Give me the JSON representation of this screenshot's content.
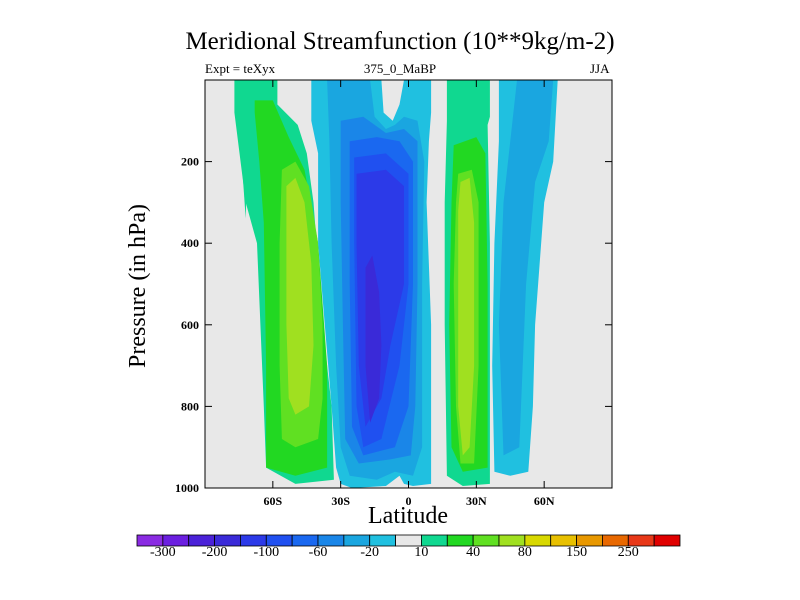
{
  "title": "Meridional Streamfunction (10**9kg/m-2)",
  "subtitle_left": "Expt = teXyx",
  "subtitle_center": "375_0_MaBP",
  "subtitle_right": "JJA",
  "chart_data": {
    "type": "contour",
    "xlabel": "Latitude",
    "ylabel": "Pressure (in hPa)",
    "xlim": [
      -90,
      90
    ],
    "ylim": [
      1000,
      0
    ],
    "x_ticks": [
      {
        "value": -60,
        "label": "60S"
      },
      {
        "value": -30,
        "label": "30S"
      },
      {
        "value": 0,
        "label": "0"
      },
      {
        "value": 30,
        "label": "30N"
      },
      {
        "value": 60,
        "label": "60N"
      }
    ],
    "y_ticks": [
      {
        "value": 200,
        "label": "200"
      },
      {
        "value": 400,
        "label": "400"
      },
      {
        "value": 600,
        "label": "600"
      },
      {
        "value": 800,
        "label": "800"
      },
      {
        "value": 1000,
        "label": "1000"
      }
    ],
    "background_color": "#e8e8e8",
    "contour_levels": [
      -300,
      -250,
      -200,
      -150,
      -100,
      -80,
      -60,
      -40,
      -20,
      -10,
      10,
      20,
      40,
      60,
      80,
      100,
      150,
      200,
      250,
      300
    ],
    "colorbar": {
      "colors": [
        "#8a2be2",
        "#6b1fe0",
        "#4b22d8",
        "#3a2ad8",
        "#2c3ae8",
        "#2050f0",
        "#1a68f0",
        "#1a86e8",
        "#1aa6e0",
        "#20c0e0",
        "#e8e8e8",
        "#10d890",
        "#22d822",
        "#60e022",
        "#a0e020",
        "#d8d800",
        "#e8c000",
        "#e89800",
        "#e86800",
        "#e83818",
        "#e00000"
      ],
      "labels": [
        {
          "index": 1,
          "text": "-300"
        },
        {
          "index": 3,
          "text": "-200"
        },
        {
          "index": 5,
          "text": "-100"
        },
        {
          "index": 7,
          "text": "-60"
        },
        {
          "index": 9,
          "text": "-20"
        },
        {
          "index": 11,
          "text": "10"
        },
        {
          "index": 13,
          "text": "40"
        },
        {
          "index": 15,
          "text": "80"
        },
        {
          "index": 17,
          "text": "150"
        },
        {
          "index": 19,
          "text": "250"
        }
      ]
    },
    "regions": [
      {
        "name": "sh-polar-cell-outer",
        "level": 10,
        "color": "#10d890",
        "points": [
          [
            -77,
            0
          ],
          [
            -58,
            0
          ],
          [
            -58,
            60
          ],
          [
            -49,
            110
          ],
          [
            -45,
            180
          ],
          [
            -42,
            300
          ],
          [
            -38,
            600
          ],
          [
            -34,
            800
          ],
          [
            -33,
            980
          ],
          [
            -50,
            990
          ],
          [
            -63,
            950
          ],
          [
            -64,
            800
          ],
          [
            -67,
            400
          ],
          [
            -72,
            300
          ],
          [
            -77,
            80
          ]
        ]
      },
      {
        "name": "sh-thin-spike",
        "level": 10,
        "color": "#10d890",
        "points": [
          [
            -73,
            120
          ],
          [
            -71,
            150
          ],
          [
            -72,
            340
          ],
          [
            -74,
            180
          ]
        ]
      },
      {
        "name": "sh-polar-cell-20",
        "level": 20,
        "color": "#22d822",
        "points": [
          [
            -68,
            50
          ],
          [
            -60,
            50
          ],
          [
            -53,
            140
          ],
          [
            -46,
            220
          ],
          [
            -40,
            400
          ],
          [
            -36,
            700
          ],
          [
            -36,
            950
          ],
          [
            -50,
            970
          ],
          [
            -63,
            950
          ],
          [
            -63,
            700
          ],
          [
            -64,
            350
          ],
          [
            -66,
            200
          ],
          [
            -68,
            80
          ]
        ]
      },
      {
        "name": "sh-polar-cell-40",
        "level": 40,
        "color": "#60e022",
        "points": [
          [
            -56,
            220
          ],
          [
            -50,
            200
          ],
          [
            -44,
            260
          ],
          [
            -40,
            400
          ],
          [
            -38,
            600
          ],
          [
            -38,
            780
          ],
          [
            -40,
            880
          ],
          [
            -50,
            900
          ],
          [
            -56,
            880
          ],
          [
            -57,
            700
          ],
          [
            -57,
            400
          ]
        ]
      },
      {
        "name": "sh-polar-cell-80",
        "level": 80,
        "color": "#a0e020",
        "points": [
          [
            -54,
            260
          ],
          [
            -50,
            240
          ],
          [
            -46,
            300
          ],
          [
            -43,
            450
          ],
          [
            -42,
            650
          ],
          [
            -44,
            800
          ],
          [
            -50,
            820
          ],
          [
            -53,
            780
          ],
          [
            -54,
            600
          ],
          [
            -54,
            400
          ]
        ]
      },
      {
        "name": "hadley-10",
        "level": -10,
        "color": "#20c0e0",
        "points": [
          [
            -43,
            0
          ],
          [
            -12,
            0
          ],
          [
            -11,
            80
          ],
          [
            -7,
            100
          ],
          [
            -4,
            60
          ],
          [
            -2,
            0
          ],
          [
            10,
            0
          ],
          [
            10,
            80
          ],
          [
            9,
            150
          ],
          [
            8,
            300
          ],
          [
            10,
            600
          ],
          [
            10,
            990
          ],
          [
            2,
            995
          ],
          [
            -2,
            990
          ],
          [
            -4,
            970
          ],
          [
            -10,
            995
          ],
          [
            -25,
            1000
          ],
          [
            -30,
            990
          ],
          [
            -32,
            950
          ],
          [
            -34,
            800
          ],
          [
            -37,
            600
          ],
          [
            -40,
            400
          ],
          [
            -40,
            180
          ],
          [
            -43,
            100
          ]
        ]
      },
      {
        "name": "hadley-20",
        "level": -20,
        "color": "#1aa6e0",
        "points": [
          [
            -36,
            0
          ],
          [
            -17,
            0
          ],
          [
            -15,
            90
          ],
          [
            -10,
            120
          ],
          [
            -6,
            110
          ],
          [
            -2,
            90
          ],
          [
            4,
            100
          ],
          [
            7,
            200
          ],
          [
            6,
            500
          ],
          [
            6,
            900
          ],
          [
            2,
            970
          ],
          [
            -6,
            960
          ],
          [
            -14,
            980
          ],
          [
            -26,
            970
          ],
          [
            -30,
            900
          ],
          [
            -32,
            700
          ],
          [
            -34,
            400
          ],
          [
            -35,
            150
          ]
        ]
      },
      {
        "name": "hadley-40",
        "level": -40,
        "color": "#1a86e8",
        "points": [
          [
            -30,
            100
          ],
          [
            -20,
            90
          ],
          [
            -10,
            130
          ],
          [
            -2,
            120
          ],
          [
            4,
            150
          ],
          [
            4,
            500
          ],
          [
            3,
            800
          ],
          [
            1,
            920
          ],
          [
            -8,
            930
          ],
          [
            -22,
            940
          ],
          [
            -28,
            880
          ],
          [
            -29,
            600
          ],
          [
            -30,
            300
          ]
        ]
      },
      {
        "name": "hadley-60",
        "level": -60,
        "color": "#1a68f0",
        "points": [
          [
            -26,
            150
          ],
          [
            -14,
            140
          ],
          [
            -4,
            150
          ],
          [
            2,
            200
          ],
          [
            2,
            500
          ],
          [
            0,
            800
          ],
          [
            -6,
            900
          ],
          [
            -20,
            920
          ],
          [
            -25,
            850
          ],
          [
            -26,
            500
          ]
        ]
      },
      {
        "name": "hadley-80",
        "level": -80,
        "color": "#2050f0",
        "points": [
          [
            -24,
            190
          ],
          [
            -10,
            180
          ],
          [
            0,
            230
          ],
          [
            0,
            500
          ],
          [
            -4,
            700
          ],
          [
            -12,
            880
          ],
          [
            -20,
            900
          ],
          [
            -23,
            800
          ],
          [
            -24,
            400
          ]
        ]
      },
      {
        "name": "hadley-100",
        "level": -100,
        "color": "#2c3ae8",
        "points": [
          [
            -23,
            230
          ],
          [
            -10,
            220
          ],
          [
            -2,
            260
          ],
          [
            -2,
            500
          ],
          [
            -8,
            650
          ],
          [
            -12,
            780
          ],
          [
            -19,
            850
          ],
          [
            -22,
            700
          ],
          [
            -23,
            400
          ]
        ]
      },
      {
        "name": "hadley-150",
        "level": -150,
        "color": "#3a2ad8",
        "points": [
          [
            -19,
            460
          ],
          [
            -16,
            430
          ],
          [
            -13,
            520
          ],
          [
            -12,
            650
          ],
          [
            -13,
            780
          ],
          [
            -17,
            840
          ],
          [
            -19,
            700
          ]
        ]
      },
      {
        "name": "nh-ferrel-10",
        "level": 10,
        "color": "#10d890",
        "points": [
          [
            17,
            0
          ],
          [
            36,
            0
          ],
          [
            36,
            90
          ],
          [
            35,
            110
          ],
          [
            36,
            400
          ],
          [
            36,
            990
          ],
          [
            24,
            995
          ],
          [
            17,
            970
          ],
          [
            16,
            600
          ],
          [
            16,
            300
          ],
          [
            17,
            100
          ]
        ]
      },
      {
        "name": "nh-ferrel-20",
        "level": 20,
        "color": "#22d822",
        "points": [
          [
            20,
            160
          ],
          [
            30,
            140
          ],
          [
            34,
            180
          ],
          [
            35,
            500
          ],
          [
            35,
            950
          ],
          [
            24,
            960
          ],
          [
            19,
            900
          ],
          [
            18,
            600
          ],
          [
            19,
            300
          ]
        ]
      },
      {
        "name": "nh-ferrel-40",
        "level": 40,
        "color": "#60e022",
        "points": [
          [
            22,
            230
          ],
          [
            28,
            220
          ],
          [
            31,
            300
          ],
          [
            31,
            700
          ],
          [
            29,
            940
          ],
          [
            23,
            940
          ],
          [
            21,
            800
          ],
          [
            20,
            500
          ],
          [
            21,
            300
          ]
        ]
      },
      {
        "name": "nh-ferrel-80",
        "level": 80,
        "color": "#a0e020",
        "points": [
          [
            23,
            250
          ],
          [
            27,
            240
          ],
          [
            29,
            350
          ],
          [
            29,
            700
          ],
          [
            27,
            900
          ],
          [
            24,
            920
          ],
          [
            22,
            800
          ],
          [
            22,
            500
          ],
          [
            22,
            320
          ]
        ]
      },
      {
        "name": "nh-polar-10",
        "level": -10,
        "color": "#20c0e0",
        "points": [
          [
            40,
            0
          ],
          [
            66,
            0
          ],
          [
            64,
            200
          ],
          [
            60,
            300
          ],
          [
            56,
            600
          ],
          [
            55,
            800
          ],
          [
            53,
            960
          ],
          [
            45,
            970
          ],
          [
            38,
            960
          ],
          [
            37,
            700
          ],
          [
            38,
            400
          ],
          [
            40,
            150
          ]
        ]
      },
      {
        "name": "nh-polar-20",
        "level": -20,
        "color": "#1aa6e0",
        "points": [
          [
            48,
            0
          ],
          [
            64,
            0
          ],
          [
            62,
            150
          ],
          [
            56,
            250
          ],
          [
            52,
            500
          ],
          [
            49,
            900
          ],
          [
            42,
            920
          ],
          [
            40,
            600
          ],
          [
            42,
            300
          ],
          [
            46,
            100
          ]
        ]
      }
    ]
  }
}
